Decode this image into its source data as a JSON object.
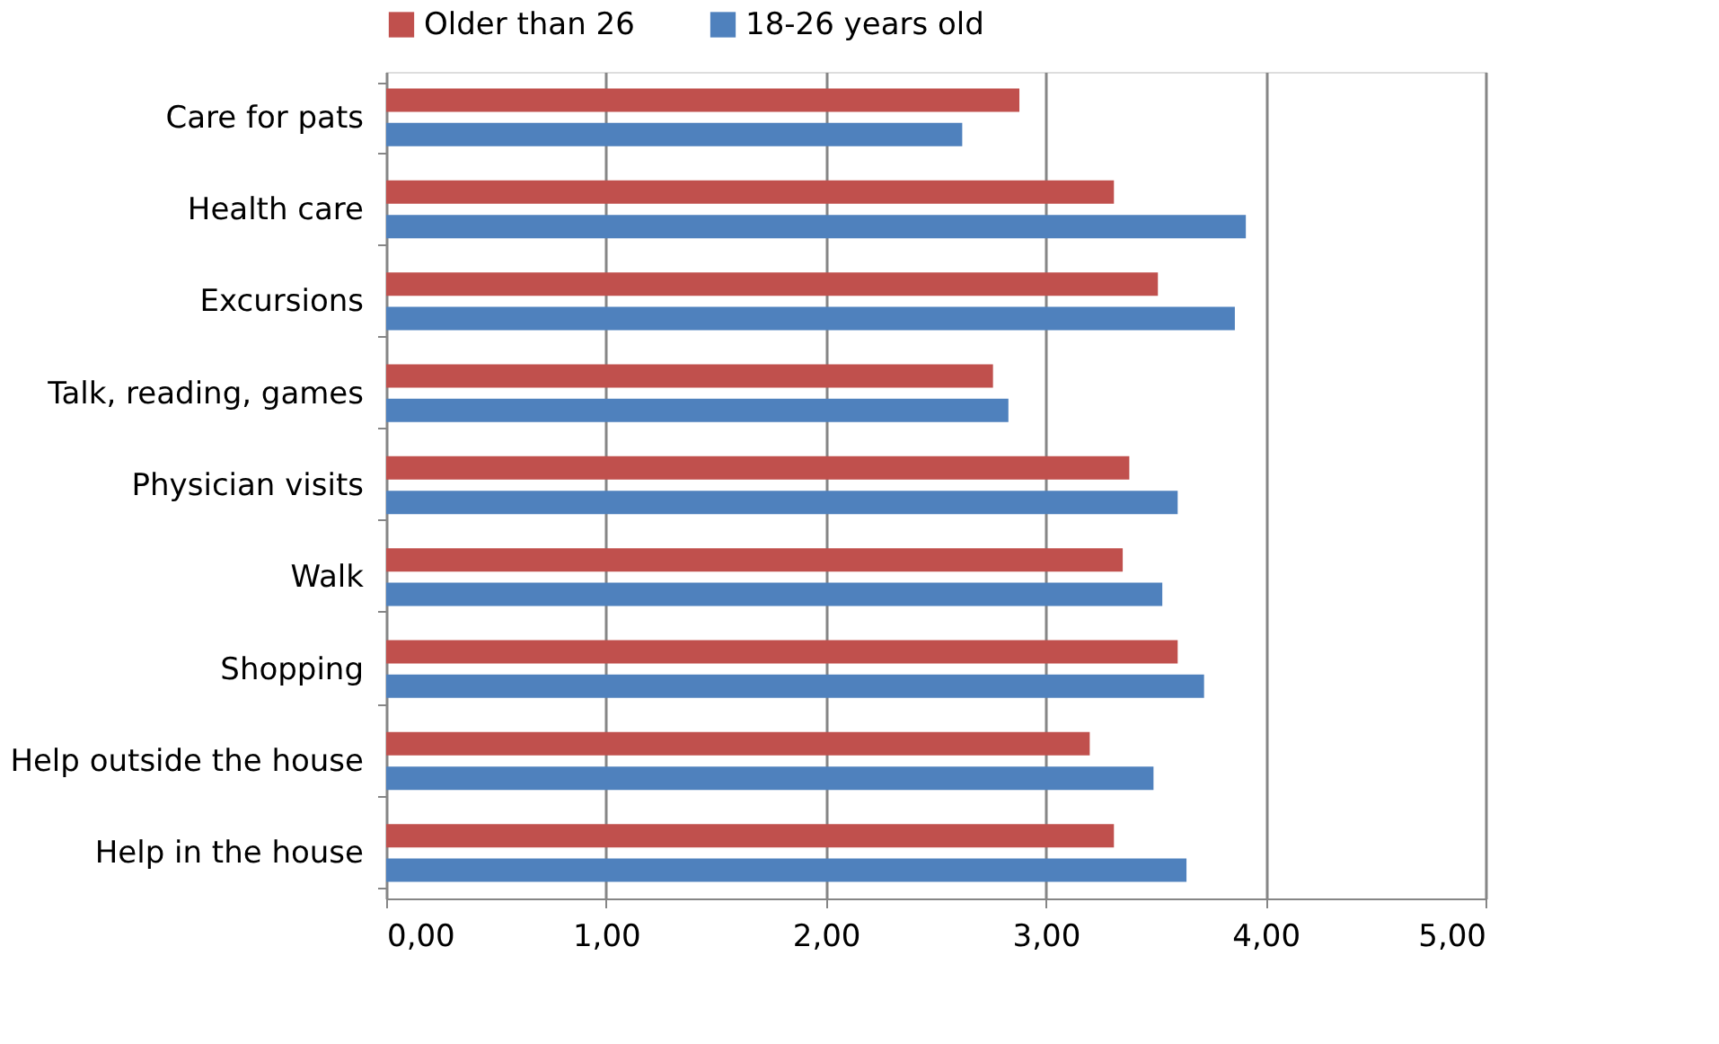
{
  "chart_data": {
    "type": "bar",
    "orientation": "horizontal",
    "categories": [
      "Care for pats",
      "Health care",
      "Excursions",
      "Talk, reading, games",
      "Physician visits",
      "Walk",
      "Shopping",
      "Help outside the house",
      "Help in the house"
    ],
    "series": [
      {
        "name": "Older than 26",
        "color": "#c0504d",
        "values": [
          2.88,
          3.31,
          3.51,
          2.76,
          3.38,
          3.35,
          3.6,
          3.2,
          3.31
        ]
      },
      {
        "name": "18-26 years old",
        "color": "#4f81bd",
        "values": [
          2.62,
          3.91,
          3.86,
          2.83,
          3.6,
          3.53,
          3.72,
          3.49,
          3.64
        ]
      }
    ],
    "xlim": [
      0,
      5
    ],
    "xticks": [
      {
        "value": 0,
        "label": "0,00"
      },
      {
        "value": 1,
        "label": "1,00"
      },
      {
        "value": 2,
        "label": "2,00"
      },
      {
        "value": 3,
        "label": "3,00"
      },
      {
        "value": 4,
        "label": "4,00"
      },
      {
        "value": 5,
        "label": "5,00"
      }
    ],
    "grid": "x",
    "legend": "top"
  }
}
